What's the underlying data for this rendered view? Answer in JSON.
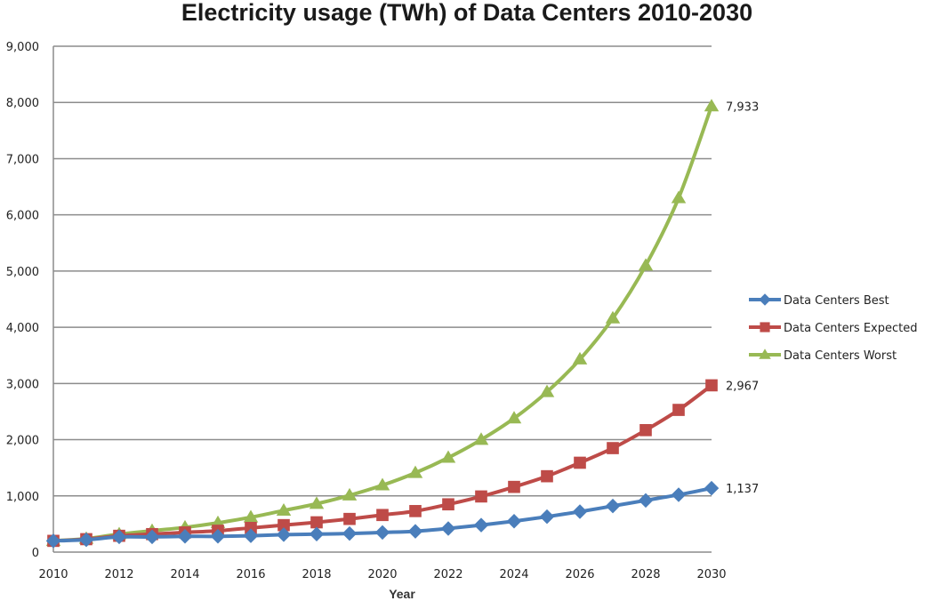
{
  "chart_data": {
    "type": "line",
    "title": "Electricity usage (TWh) of Data Centers 2010-2030",
    "xlabel": "Year",
    "ylabel": "",
    "ylim": [
      0,
      9000
    ],
    "yticks": [
      0,
      1000,
      2000,
      3000,
      4000,
      5000,
      6000,
      7000,
      8000,
      9000
    ],
    "ytick_labels": [
      "0",
      "1,000",
      "2,000",
      "3,000",
      "4,000",
      "5,000",
      "6,000",
      "7,000",
      "8,000",
      "9,000"
    ],
    "xlim": [
      2010,
      2030
    ],
    "xticks": [
      2010,
      2012,
      2014,
      2016,
      2018,
      2020,
      2022,
      2024,
      2026,
      2028,
      2030
    ],
    "xtick_labels": [
      "2010",
      "2012",
      "2014",
      "2016",
      "2018",
      "2020",
      "2022",
      "2024",
      "2026",
      "2028",
      "2030"
    ],
    "grid": "horizontal",
    "legend_position": "right",
    "x": [
      2010,
      2011,
      2012,
      2013,
      2014,
      2015,
      2016,
      2017,
      2018,
      2019,
      2020,
      2021,
      2022,
      2023,
      2024,
      2025,
      2026,
      2027,
      2028,
      2029,
      2030
    ],
    "series": [
      {
        "name": "Data Centers Best",
        "color": "#4a7ebb",
        "marker": "diamond",
        "values": [
          200,
          220,
          270,
          270,
          280,
          280,
          290,
          310,
          320,
          330,
          350,
          370,
          420,
          480,
          550,
          630,
          720,
          820,
          920,
          1020,
          1137
        ],
        "end_label": "1,137"
      },
      {
        "name": "Data Centers Expected",
        "color": "#be4b48",
        "marker": "square",
        "values": [
          200,
          230,
          290,
          320,
          350,
          380,
          430,
          480,
          530,
          590,
          660,
          730,
          850,
          990,
          1160,
          1350,
          1590,
          1850,
          2170,
          2530,
          2967
        ],
        "end_label": "2,967"
      },
      {
        "name": "Data Centers Worst",
        "color": "#98b954",
        "marker": "triangle",
        "values": [
          200,
          240,
          320,
          380,
          440,
          520,
          620,
          740,
          860,
          1010,
          1190,
          1410,
          1680,
          2000,
          2380,
          2850,
          3430,
          4160,
          5100,
          6300,
          7933
        ],
        "end_label": "7,933"
      }
    ]
  }
}
